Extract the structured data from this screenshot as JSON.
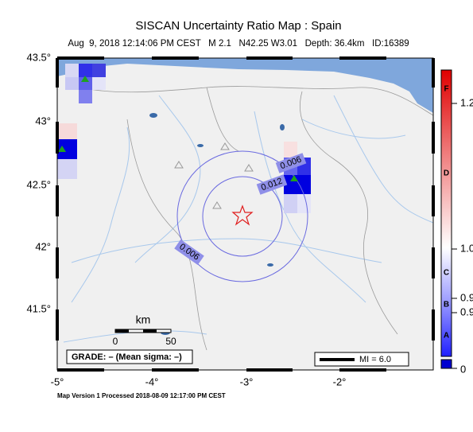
{
  "header": {
    "title": "SISCAN Uncertainty Ratio Map : Spain",
    "subtitle": "Aug  9, 2018 12:14:06 PM CEST   M 2.1   N42.25 W3.01   Depth: 36.4km   ID:16389"
  },
  "map": {
    "lat_labels": [
      "43.5°",
      "43°",
      "42.5°",
      "42°",
      "41.5°"
    ],
    "lon_labels": [
      "-5°",
      "-4°",
      "-3°",
      "-2°"
    ],
    "contour_labels": [
      "0.006",
      "0.012",
      "0.006"
    ],
    "scale": {
      "unit": "km",
      "ticks": [
        "0",
        "50"
      ]
    },
    "grade": "GRADE: – (Mean sigma: –)",
    "legend": "MI = 6.0"
  },
  "colorbar": {
    "letters": [
      "F",
      "D",
      "C",
      "B",
      "A"
    ],
    "ticks": [
      "1.2",
      "1.0",
      "0.9",
      "0.9",
      "0"
    ]
  },
  "footer": "Map Version 1 Processed 2018-08-09 12:17:00 PM CEST"
}
